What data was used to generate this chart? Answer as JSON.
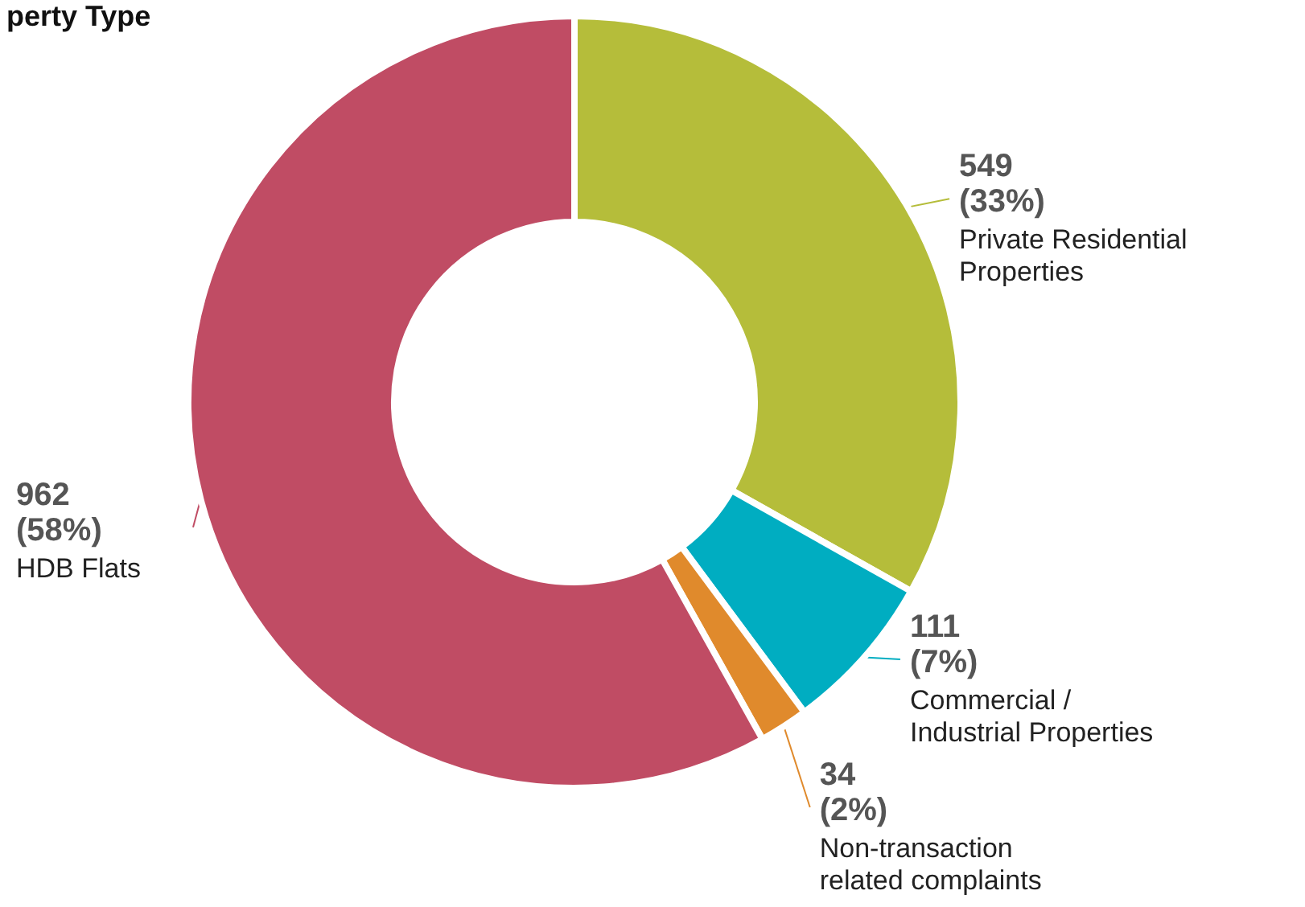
{
  "chart_data": {
    "type": "donut",
    "title": "perty Type",
    "categories": [
      "Private Residential Properties",
      "Commercial / Industrial Properties",
      "Non-transaction related complaints",
      "HDB Flats"
    ],
    "values": [
      549,
      111,
      34,
      962
    ],
    "value_labels": [
      "549 (33%)",
      "111 (7%)",
      "34 (2%)",
      "962 (58%)"
    ],
    "colors": [
      "#b5bd3a",
      "#00adc1",
      "#e08a2c",
      "#c04c64"
    ]
  }
}
